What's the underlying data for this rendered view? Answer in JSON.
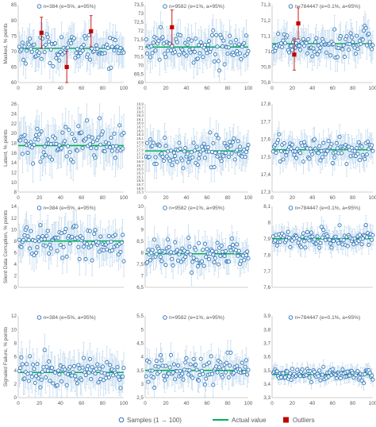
{
  "colors": {
    "sample": "#2e75b6",
    "errorbar": "#bdd7ee",
    "actual": "#00b050",
    "outlier": "#c00000",
    "axis": "#bfbfbf",
    "text": "#595959"
  },
  "legend": {
    "samples": "Samples (1 → 100)",
    "actual": "Actual value",
    "outliers": "Outliers"
  },
  "chart_data": [
    {
      "type": "scatter",
      "row": 0,
      "col": 0,
      "ylabel": "Masked, % points",
      "legend": "n=384 (e=5%, a=95%)",
      "ylim": [
        60,
        85
      ],
      "yticks": [
        "60",
        "65",
        "70",
        "75",
        "80",
        "85"
      ],
      "xlim": [
        0,
        100
      ],
      "xticks": [
        "0",
        "20",
        "40",
        "60",
        "80",
        "100"
      ],
      "show_xticks": true,
      "actual": 71,
      "spread": 2.3,
      "err": 4.8,
      "outliers": [
        {
          "x": 22,
          "y": 76,
          "err": 5
        },
        {
          "x": 46,
          "y": 65,
          "err": 5
        },
        {
          "x": 69,
          "y": 76.5,
          "err": 5
        }
      ]
    },
    {
      "type": "scatter",
      "row": 0,
      "col": 1,
      "ylabel": "",
      "legend": "n=9582 (e=1%, a=95%)",
      "ylim": [
        69,
        73.5
      ],
      "yticks": [
        "69",
        "69,5",
        "70",
        "70,5",
        "71",
        "71,5",
        "72",
        "72,5",
        "73",
        "73,5"
      ],
      "xlim": [
        0,
        100
      ],
      "xticks": [
        "0",
        "20",
        "40",
        "60",
        "80",
        "100"
      ],
      "show_xticks": true,
      "actual": 71.05,
      "spread": 0.45,
      "err": 0.9,
      "outliers": [
        {
          "x": 26,
          "y": 72.2,
          "err": 1
        }
      ]
    },
    {
      "type": "scatter",
      "row": 0,
      "col": 2,
      "ylabel": "",
      "legend": "n=784447 (e=0.1%, a=95%)",
      "ylim": [
        70.8,
        71.3
      ],
      "yticks": [
        "70,8",
        "70,9",
        "71",
        "71,1",
        "71,2",
        "71,3"
      ],
      "xlim": [
        0,
        100
      ],
      "xticks": [
        "0",
        "20",
        "40",
        "60",
        "80",
        "100"
      ],
      "show_xticks": true,
      "actual": 71.05,
      "spread": 0.045,
      "err": 0.09,
      "outliers": [
        {
          "x": 26,
          "y": 71.18,
          "err": 0.1
        },
        {
          "x": 22,
          "y": 70.98,
          "err": 0.1
        }
      ]
    },
    {
      "type": "scatter",
      "row": 1,
      "col": 0,
      "ylabel": "Latent, % points",
      "legend": "",
      "ylim": [
        8,
        26
      ],
      "yticks": [
        "8",
        "10",
        "12",
        "14",
        "16",
        "18",
        "20",
        "22",
        "24",
        "26"
      ],
      "xlim": [
        0,
        100
      ],
      "xticks": [
        "0",
        "20",
        "40",
        "60",
        "80",
        "100"
      ],
      "show_xticks": true,
      "actual": 17.5,
      "spread": 2.0,
      "err": 3.8,
      "outliers": []
    },
    {
      "type": "scatter",
      "row": 1,
      "col": 1,
      "ylabel": "",
      "legend": "",
      "ylim": [
        15.3,
        19.9
      ],
      "yticks": [
        "15,3",
        "15,5",
        "15,7",
        "15,9",
        "16,1",
        "16,3",
        "16,5",
        "16,7",
        "16,9",
        "17,1",
        "17,3",
        "17,5",
        "17,7",
        "17,9",
        "18,1",
        "18,3",
        "18,5",
        "18,7",
        "18,9",
        "19,1",
        "19,3",
        "19,5",
        "19,7",
        "19,9"
      ],
      "xlim": [
        0,
        100
      ],
      "xticks": [
        "0",
        "20",
        "40",
        "60",
        "80",
        "100"
      ],
      "show_xticks": true,
      "actual": 17.45,
      "spread": 0.4,
      "err": 0.75,
      "outliers": []
    },
    {
      "type": "scatter",
      "row": 1,
      "col": 2,
      "ylabel": "",
      "legend": "",
      "ylim": [
        17.3,
        17.8
      ],
      "yticks": [
        "17,3",
        "17,4",
        "17,5",
        "17,6",
        "17,7",
        "17,8"
      ],
      "xlim": [
        0,
        100
      ],
      "xticks": [
        "0",
        "20",
        "40",
        "60",
        "80",
        "100"
      ],
      "show_xticks": true,
      "actual": 17.54,
      "spread": 0.035,
      "err": 0.07,
      "outliers": []
    },
    {
      "type": "scatter",
      "row": 2,
      "col": 0,
      "ylabel": "Silent Data Corruption, % points",
      "legend": "n=384 (e=5%, a=95%)",
      "ylim": [
        0,
        14
      ],
      "yticks": [
        "0",
        "2",
        "4",
        "6",
        "8",
        "10",
        "12",
        "14"
      ],
      "xlim": [
        0,
        100
      ],
      "xticks": [
        "0",
        "20",
        "40",
        "60",
        "80",
        "100"
      ],
      "show_xticks": false,
      "actual": 8,
      "spread": 1.5,
      "err": 2.7,
      "outliers": []
    },
    {
      "type": "scatter",
      "row": 2,
      "col": 1,
      "ylabel": "",
      "legend": "n=9582 (e=1%, a=95%)",
      "ylim": [
        6.5,
        10
      ],
      "yticks": [
        "6,5",
        "7",
        "7,5",
        "8",
        "8,5",
        "9",
        "9,5",
        "10"
      ],
      "xlim": [
        0,
        100
      ],
      "xticks": [
        "0",
        "20",
        "40",
        "60",
        "80",
        "100"
      ],
      "show_xticks": false,
      "actual": 7.95,
      "spread": 0.3,
      "err": 0.55,
      "outliers": []
    },
    {
      "type": "scatter",
      "row": 2,
      "col": 2,
      "ylabel": "",
      "legend": "n=784447 (e=0.1%, a=95%)",
      "ylim": [
        7.6,
        8.1
      ],
      "yticks": [
        "7,6",
        "7,7",
        "7,8",
        "7,9",
        "8",
        "8,1"
      ],
      "xlim": [
        0,
        100
      ],
      "xticks": [
        "0",
        "20",
        "40",
        "60",
        "80",
        "100"
      ],
      "show_xticks": false,
      "actual": 7.9,
      "spread": 0.03,
      "err": 0.06,
      "outliers": []
    },
    {
      "type": "scatter",
      "row": 3,
      "col": 0,
      "ylabel": "Signaled Failure, % points",
      "legend": "n=384 (e=5%, a=95%)",
      "ylim": [
        0,
        12
      ],
      "yticks": [
        "0",
        "2",
        "4",
        "6",
        "8",
        "10",
        "12"
      ],
      "xlim": [
        0,
        100
      ],
      "xticks": [
        "0",
        "20",
        "40",
        "60",
        "80",
        "100"
      ],
      "show_xticks": true,
      "actual": 3.7,
      "spread": 1.0,
      "err": 2.3,
      "outliers": []
    },
    {
      "type": "scatter",
      "row": 3,
      "col": 1,
      "ylabel": "",
      "legend": "n=9582 (e=1%, a=95%)",
      "ylim": [
        2.5,
        5.5
      ],
      "yticks": [
        "2,5",
        "3",
        "3,5",
        "4",
        "4,5",
        "5",
        "5,5"
      ],
      "xlim": [
        0,
        100
      ],
      "xticks": [
        "0",
        "20",
        "40",
        "60",
        "80",
        "100"
      ],
      "show_xticks": true,
      "actual": 3.5,
      "spread": 0.25,
      "err": 0.45,
      "outliers": []
    },
    {
      "type": "scatter",
      "row": 3,
      "col": 2,
      "ylabel": "",
      "legend": "n=784447 (e=0.1%, a=95%)",
      "ylim": [
        3.3,
        3.9
      ],
      "yticks": [
        "3,3",
        "3,4",
        "3,5",
        "3,6",
        "3,7",
        "3,8",
        "3,9"
      ],
      "xlim": [
        0,
        100
      ],
      "xticks": [
        "0",
        "20",
        "40",
        "60",
        "80",
        "100"
      ],
      "show_xticks": true,
      "actual": 3.47,
      "spread": 0.025,
      "err": 0.05,
      "outliers": []
    }
  ]
}
